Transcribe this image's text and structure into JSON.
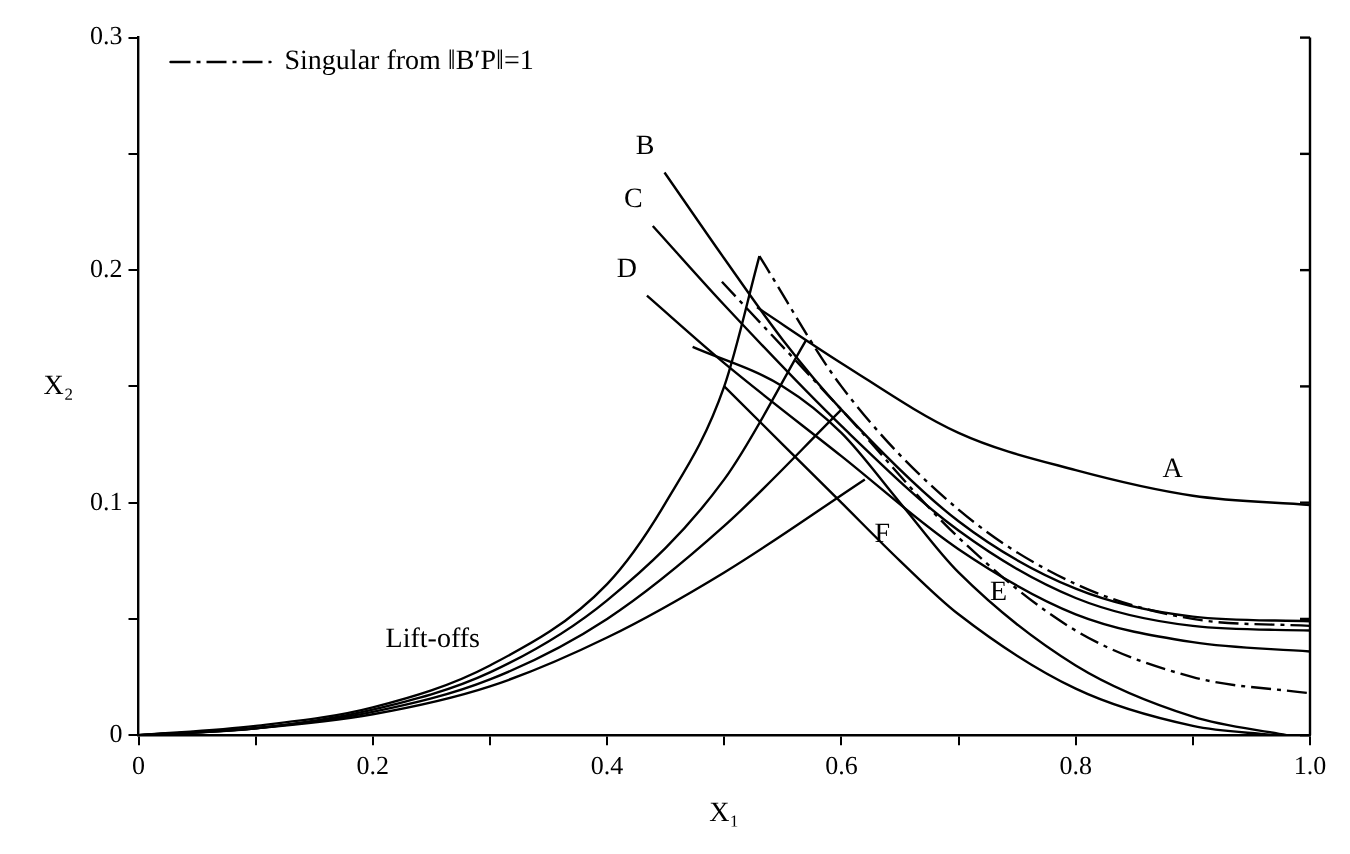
{
  "chart_data": {
    "type": "line",
    "xlabel": "X₁",
    "ylabel": "X₂",
    "xlim": [
      0,
      1
    ],
    "ylim": [
      0,
      0.3
    ],
    "xticks": [
      0,
      {
        "value": 0.1,
        "label": null
      },
      0.2,
      {
        "value": 0.3,
        "label": null
      },
      0.4,
      {
        "value": 0.5,
        "label": null
      },
      0.6,
      {
        "value": 0.7,
        "label": null
      },
      0.8,
      {
        "value": 0.9,
        "label": null
      },
      {
        "value": 1,
        "label": "1.0"
      }
    ],
    "yticks": [
      0,
      {
        "value": 0.05,
        "label": null
      },
      0.1,
      {
        "value": 0.15,
        "label": null
      },
      0.2,
      {
        "value": 0.25,
        "label": null
      },
      0.3
    ],
    "grid": false,
    "legend": "top left",
    "line_style": "solid",
    "series": [
      {
        "color": "#000000",
        "x": [
          0,
          0.1,
          0.2,
          0.3,
          0.4,
          0.45,
          0.5,
          0.53
        ],
        "values": [
          0,
          0.004,
          0.012,
          0.03,
          0.065,
          0.1,
          0.15,
          0.206
        ]
      },
      {
        "color": "#000000",
        "x": [
          0,
          0.1,
          0.2,
          0.3,
          0.4,
          0.5,
          0.57
        ],
        "values": [
          0,
          0.003,
          0.011,
          0.027,
          0.058,
          0.11,
          0.17
        ]
      },
      {
        "color": "#000000",
        "x": [
          0,
          0.1,
          0.2,
          0.3,
          0.4,
          0.5,
          0.6
        ],
        "values": [
          0,
          0.003,
          0.01,
          0.024,
          0.05,
          0.09,
          0.14
        ]
      },
      {
        "color": "#000000",
        "x": [
          0,
          0.1,
          0.2,
          0.3,
          0.4,
          0.5,
          0.62
        ],
        "values": [
          0,
          0.003,
          0.009,
          0.021,
          0.042,
          0.07,
          0.11
        ]
      },
      {
        "color": "#000000",
        "x": [
          0.528,
          0.6,
          0.7,
          0.8,
          0.9,
          1
        ],
        "values": [
          0.184,
          0.16,
          0.13,
          0.114,
          0.103,
          0.099
        ]
      },
      {
        "color": "#000000",
        "x": [
          0.449,
          0.5,
          0.55,
          0.6,
          0.7,
          0.8,
          0.9,
          1
        ],
        "values": [
          0.242,
          0.205,
          0.17,
          0.14,
          0.092,
          0.063,
          0.051,
          0.049
        ]
      },
      {
        "color": "#000000",
        "x": [
          0.439,
          0.5,
          0.6,
          0.7,
          0.8,
          0.9,
          1
        ],
        "values": [
          0.219,
          0.185,
          0.133,
          0.088,
          0.059,
          0.047,
          0.045
        ]
      },
      {
        "color": "#000000",
        "x": [
          0.434,
          0.5,
          0.6,
          0.7,
          0.8,
          0.9,
          1
        ],
        "values": [
          0.189,
          0.16,
          0.12,
          0.08,
          0.052,
          0.04,
          0.036
        ]
      },
      {
        "color": "#000000",
        "x": [
          0.473,
          0.55,
          0.6,
          0.65,
          0.7,
          0.8,
          0.9,
          0.98
        ],
        "values": [
          0.167,
          0.15,
          0.13,
          0.1,
          0.07,
          0.03,
          0.008,
          0
        ]
      },
      {
        "color": "#000000",
        "x": [
          0.5,
          0.55,
          0.6,
          0.65,
          0.7,
          0.8,
          0.9,
          0.97
        ],
        "values": [
          0.15,
          0.125,
          0.1,
          0.075,
          0.052,
          0.02,
          0.004,
          0
        ]
      },
      {
        "name": "Singular from ‖B′P‖=1",
        "color": "#000000",
        "line_style": "dashed",
        "x": [
          0.53,
          0.6,
          0.7,
          0.8,
          0.9,
          1
        ],
        "values": [
          0.206,
          0.15,
          0.097,
          0.065,
          0.05,
          0.047
        ]
      },
      {
        "color": "#000000",
        "line_style": "dashed",
        "x": [
          0.498,
          0.6,
          0.7,
          0.8,
          0.9,
          1
        ],
        "values": [
          0.195,
          0.14,
          0.085,
          0.045,
          0.025,
          0.018
        ]
      }
    ],
    "annotations": [
      {
        "text": "A",
        "x": 0.9,
        "y": 0.103
      },
      {
        "text": "B",
        "x": 0.449,
        "y": 0.242
      },
      {
        "text": "C",
        "x": 0.439,
        "y": 0.219
      },
      {
        "text": "D",
        "x": 0.434,
        "y": 0.189
      },
      {
        "text": "E",
        "x": 0.75,
        "y": 0.05
      },
      {
        "text": "F",
        "x": 0.65,
        "y": 0.075
      },
      {
        "text": "Lift-offs",
        "x": 0.3,
        "y": 0.03
      }
    ]
  }
}
